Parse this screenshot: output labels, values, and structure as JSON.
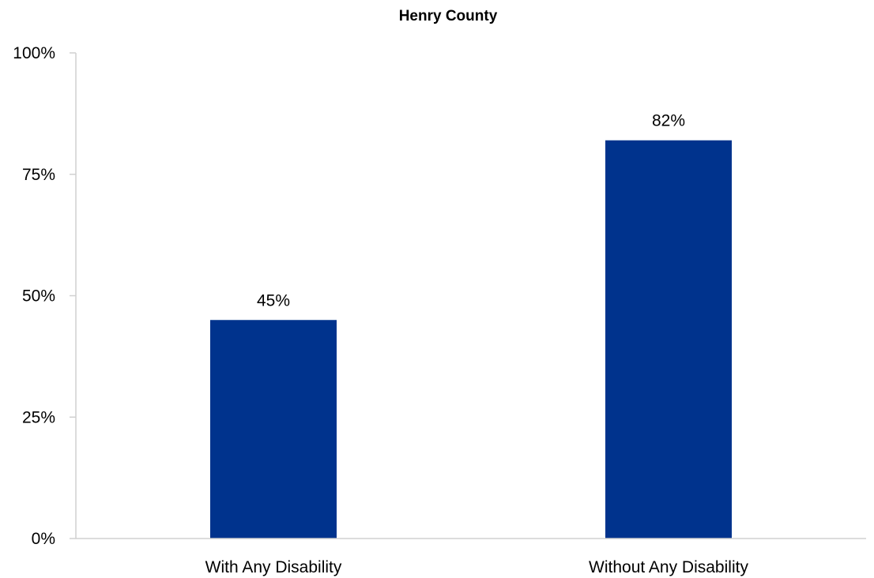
{
  "chart_data": {
    "type": "bar",
    "title": "Henry County",
    "categories": [
      "With Any Disability",
      "Without Any Disability"
    ],
    "series": [
      {
        "values": [
          45,
          82
        ],
        "labels": [
          "45%",
          "82%"
        ],
        "color": "#00338d"
      }
    ],
    "ylim": [
      0,
      100
    ],
    "yticks": [
      0,
      25,
      50,
      75,
      100
    ],
    "ytick_labels": [
      "0%",
      "25%",
      "50%",
      "75%",
      "100%"
    ],
    "grid": false,
    "legend": "none"
  }
}
